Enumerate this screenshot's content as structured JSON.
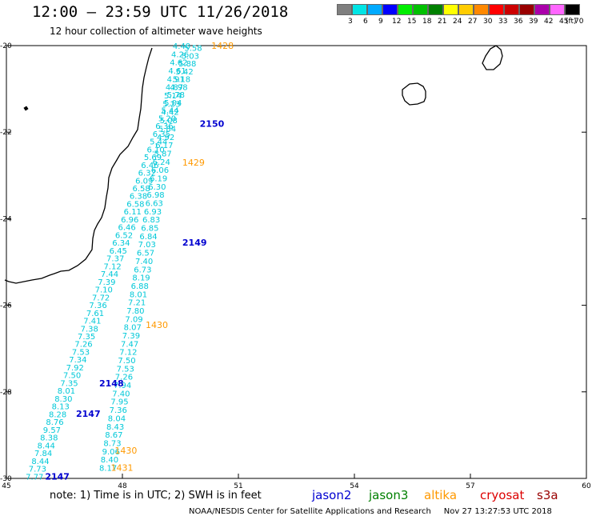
{
  "header": {
    "title": "12:00 – 23:59 UTC 11/26/2018",
    "subtitle": "12 hour collection of altimeter wave heights"
  },
  "color_scale": {
    "bins": [
      {
        "label": "3",
        "color": "#7f7f7f"
      },
      {
        "label": "6",
        "color": "#00e5e5"
      },
      {
        "label": "9",
        "color": "#00aaff"
      },
      {
        "label": "12",
        "color": "#0000ff"
      },
      {
        "label": "15",
        "color": "#00ee00"
      },
      {
        "label": "18",
        "color": "#00c000"
      },
      {
        "label": "21",
        "color": "#008000"
      },
      {
        "label": "24",
        "color": "#ffff00"
      },
      {
        "label": "27",
        "color": "#ffcc00"
      },
      {
        "label": "30",
        "color": "#ff8800"
      },
      {
        "label": "33",
        "color": "#ff0000"
      },
      {
        "label": "36",
        "color": "#cc0000"
      },
      {
        "label": "39",
        "color": "#990000"
      },
      {
        "label": "42",
        "color": "#aa00aa"
      },
      {
        "label": "45",
        "color": "#ff66ff"
      },
      {
        "label": "70",
        "color": "#000000"
      }
    ],
    "unit": "(ft)"
  },
  "map": {
    "lon_range": [
      45,
      60
    ],
    "lat_range": [
      -30,
      -20
    ],
    "lon_ticks": [
      "45",
      "48",
      "51",
      "54",
      "57",
      "60"
    ],
    "lat_ticks": [
      "-20",
      "-22",
      "-24",
      "-26",
      "-28",
      "-30"
    ]
  },
  "track_colors": {
    "cyan": "#00c8d8",
    "jason2": "#0000d0",
    "altika": "#ff9900",
    "aux": "#1a1a6e"
  },
  "tracks": {
    "track_a_values": [
      "4.40",
      "4.26",
      "4.62",
      "4.61",
      "4.91",
      "4.87",
      "5.14",
      "5.23",
      "4.42",
      "5.08",
      "5.84",
      "4.92",
      "6.17",
      "5.87",
      "6.24",
      "6.06",
      "6.19",
      "6.30",
      "6.98",
      "6.63",
      "6.93",
      "6.83",
      "6.85",
      "6.84",
      "7.03",
      "6.57",
      "7.40",
      "6.73",
      "8.19",
      "6.88",
      "8.01",
      "7.21",
      "7.80",
      "7.09",
      "8.07",
      "7.39",
      "7.47",
      "7.12",
      "7.50",
      "7.53",
      "7.26",
      "7.94",
      "7.40",
      "7.95",
      "7.36",
      "8.04",
      "8.43",
      "8.67",
      "8.73",
      "9.06",
      "8.40",
      "8.17"
    ],
    "track_b_values": [
      "5.58",
      "5.03",
      "5.88",
      "5.42",
      "5.18",
      "4.98",
      "5.78",
      "5.04",
      "5.44",
      "5.20",
      "6.36",
      "6.35",
      "5.44",
      "6.10",
      "5.69",
      "6.46",
      "6.32",
      "6.09",
      "6.58",
      "6.38",
      "6.58",
      "6.11",
      "6.96",
      "6.46",
      "6.52",
      "6.34",
      "6.45",
      "7.37",
      "7.12",
      "7.44",
      "7.39",
      "7.10",
      "7.72",
      "7.36",
      "7.61",
      "7.41",
      "7.38",
      "7.35",
      "7.26",
      "7.53",
      "7.34",
      "7.92",
      "7.50",
      "7.35",
      "8.01",
      "8.30",
      "8.13",
      "8.28",
      "8.76",
      "9.57",
      "8.38",
      "8.44",
      "7.84",
      "8.44",
      "7.73",
      "7.77"
    ],
    "time_labels": [
      {
        "text": "1428",
        "kind": "altika",
        "lon": 50.3,
        "lat": -20.0
      },
      {
        "text": "2150",
        "kind": "jason2",
        "lon": 50.0,
        "lat": -21.8
      },
      {
        "text": "1429",
        "kind": "altika",
        "lon": 49.55,
        "lat": -22.7
      },
      {
        "text": "2149",
        "kind": "jason2",
        "lon": 49.55,
        "lat": -24.55
      },
      {
        "text": "1430",
        "kind": "altika",
        "lon": 48.6,
        "lat": -26.45
      },
      {
        "text": "2148",
        "kind": "jason2",
        "lon": 47.4,
        "lat": -27.8
      },
      {
        "text": "2147",
        "kind": "jason2",
        "lon": 46.8,
        "lat": -28.5
      },
      {
        "text": "1430",
        "kind": "altika",
        "lon": 47.8,
        "lat": -29.35
      },
      {
        "text": "1431",
        "kind": "altika",
        "lon": 47.7,
        "lat": -29.75
      },
      {
        "text": "2147",
        "kind": "jason2",
        "lon": 46.0,
        "lat": -29.95
      }
    ]
  },
  "footer": {
    "note": "note:  1) Time is in UTC;  2) SWH is in feet",
    "satellites": [
      {
        "name": "jason2",
        "color": "#0000d0"
      },
      {
        "name": "jason3",
        "color": "#008000"
      },
      {
        "name": "altika",
        "color": "#ff9900"
      },
      {
        "name": "cryosat",
        "color": "#dd0000"
      },
      {
        "name": "s3a",
        "color": "#990000"
      }
    ],
    "credit": "NOAA/NESDIS Center for Satellite Applications and Research     Nov 27 13:27:53 UTC 2018"
  }
}
